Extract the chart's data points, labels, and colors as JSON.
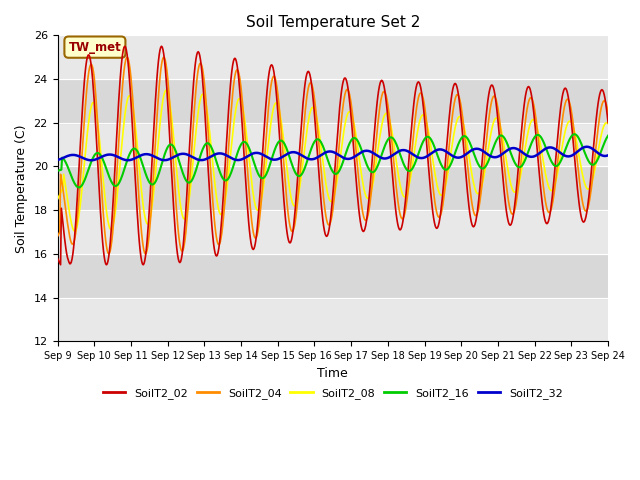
{
  "title": "Soil Temperature Set 2",
  "xlabel": "Time",
  "ylabel": "Soil Temperature (C)",
  "ylim": [
    12,
    26
  ],
  "colors": {
    "SoilT2_02": "#cc0000",
    "SoilT2_04": "#ff8c00",
    "SoilT2_08": "#ffff00",
    "SoilT2_16": "#00cc00",
    "SoilT2_32": "#0000cc"
  },
  "annotation_text": "TW_met",
  "annotation_bg": "#ffffcc",
  "annotation_border": "#996600",
  "annotation_text_color": "#990000",
  "bg_color": "#ffffff",
  "plot_bg": "#f0f0f0",
  "band_colors": [
    "#e8e8e8",
    "#d8d8d8"
  ],
  "legend_colors": [
    "#cc0000",
    "#ff8c00",
    "#ffff00",
    "#00cc00",
    "#0000cc"
  ],
  "legend_labels": [
    "SoilT2_02",
    "SoilT2_04",
    "SoilT2_08",
    "SoilT2_16",
    "SoilT2_32"
  ],
  "tick_labels": [
    "Sep 9",
    "Sep 10",
    "Sep 11",
    "Sep 12",
    "Sep 13",
    "Sep 14",
    "Sep 15",
    "Sep 16",
    "Sep 17",
    "Sep 18",
    "Sep 19",
    "Sep 20",
    "Sep 21",
    "Sep 22",
    "Sep 23",
    "Sep 24"
  ],
  "yticks": [
    12,
    14,
    16,
    18,
    20,
    22,
    24,
    26
  ]
}
